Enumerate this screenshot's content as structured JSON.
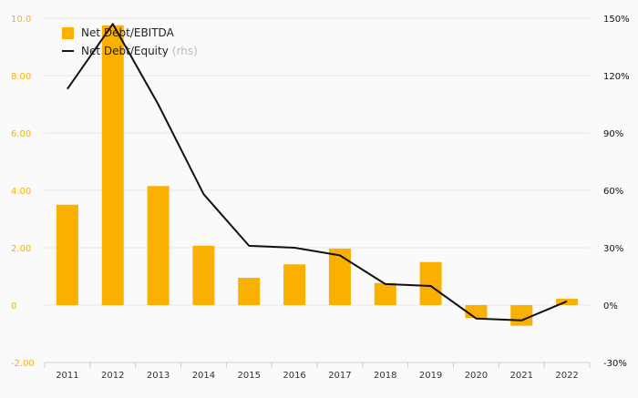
{
  "colors": {
    "bar": "#F9B000",
    "line": "#111111",
    "left_axis_text": "#F9B000",
    "right_axis_text": "#111111",
    "grid": "#e6e6e6",
    "background": "#fafafa"
  },
  "legend": {
    "bar_label": "Net Debt/EBITDA",
    "line_label": "Net Debt/Equity",
    "line_suffix": "(rhs)"
  },
  "chart_data": {
    "type": "bar",
    "categories": [
      "2011",
      "2012",
      "2013",
      "2014",
      "2015",
      "2016",
      "2017",
      "2018",
      "2019",
      "2020",
      "2021",
      "2022"
    ],
    "series": [
      {
        "name": "Net Debt/EBITDA",
        "type": "bar",
        "axis": "left",
        "values": [
          3.5,
          9.75,
          4.15,
          2.07,
          0.95,
          1.42,
          1.97,
          0.77,
          1.5,
          -0.45,
          -0.72,
          0.22
        ]
      },
      {
        "name": "Net Debt/Equity (rhs)",
        "type": "line",
        "axis": "right",
        "values": [
          113,
          147,
          105,
          58,
          31,
          30,
          26,
          11,
          10,
          -7,
          -8,
          2
        ]
      }
    ],
    "y_left": {
      "ylim": [
        -2,
        10
      ],
      "ticks": [
        -2,
        0,
        2,
        4,
        6,
        8,
        10
      ],
      "tick_labels": [
        "-2.00",
        "0",
        "2.00",
        "4.00",
        "6.00",
        "8.00",
        "10.0"
      ]
    },
    "y_right": {
      "ylim": [
        -30,
        150
      ],
      "ticks": [
        -30,
        0,
        30,
        60,
        90,
        120,
        150
      ],
      "tick_labels": [
        "-30%",
        "0%",
        "30%",
        "60%",
        "90%",
        "120%",
        "150%"
      ]
    },
    "grid": true,
    "legend_position": "top-left"
  }
}
